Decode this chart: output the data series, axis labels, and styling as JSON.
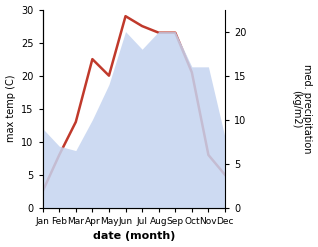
{
  "months": [
    "Jan",
    "Feb",
    "Mar",
    "Apr",
    "May",
    "Jun",
    "Jul",
    "Aug",
    "Sep",
    "Oct",
    "Nov",
    "Dec"
  ],
  "max_temp": [
    2.5,
    8.0,
    13.0,
    22.5,
    20.0,
    29.0,
    27.5,
    26.5,
    26.5,
    20.5,
    8.0,
    5.0
  ],
  "precipitation": [
    9.0,
    7.0,
    6.5,
    10.0,
    14.0,
    20.0,
    18.0,
    20.0,
    20.0,
    16.0,
    16.0,
    8.0
  ],
  "temp_color": "#c0392b",
  "precip_fill_color": "#c5d4f0",
  "precip_fill_alpha": 0.85,
  "temp_ylim": [
    0,
    30
  ],
  "precip_ylim": [
    0,
    22.5
  ],
  "left_yticks": [
    0,
    5,
    10,
    15,
    20,
    25,
    30
  ],
  "right_yticks": [
    0,
    5,
    10,
    15,
    20
  ],
  "xlabel": "date (month)",
  "ylabel_left": "max temp (C)",
  "ylabel_right": "med. precipitation\n(kg/m2)",
  "background_color": "#ffffff",
  "temp_linewidth": 1.8
}
